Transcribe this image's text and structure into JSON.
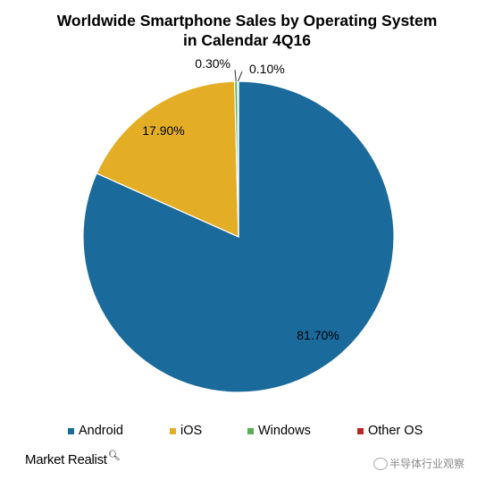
{
  "chart_data": {
    "type": "pie",
    "title": [
      "Worldwide Smartphone Sales by Operating System",
      "in Calendar 4Q16"
    ],
    "slices": [
      {
        "label": "Android",
        "value": 81.7,
        "display": "81.70%",
        "color": "#1b6a9c"
      },
      {
        "label": "iOS",
        "value": 17.9,
        "display": "17.90%",
        "color": "#e3ae26"
      },
      {
        "label": "Windows",
        "value": 0.3,
        "display": "0.30%",
        "color": "#5aae5a"
      },
      {
        "label": "Other OS",
        "value": 0.1,
        "display": "0.10%",
        "color": "#b72828"
      }
    ],
    "legend_position": "bottom"
  },
  "brand": "Market Realist",
  "watermark": "半导体行业观察"
}
